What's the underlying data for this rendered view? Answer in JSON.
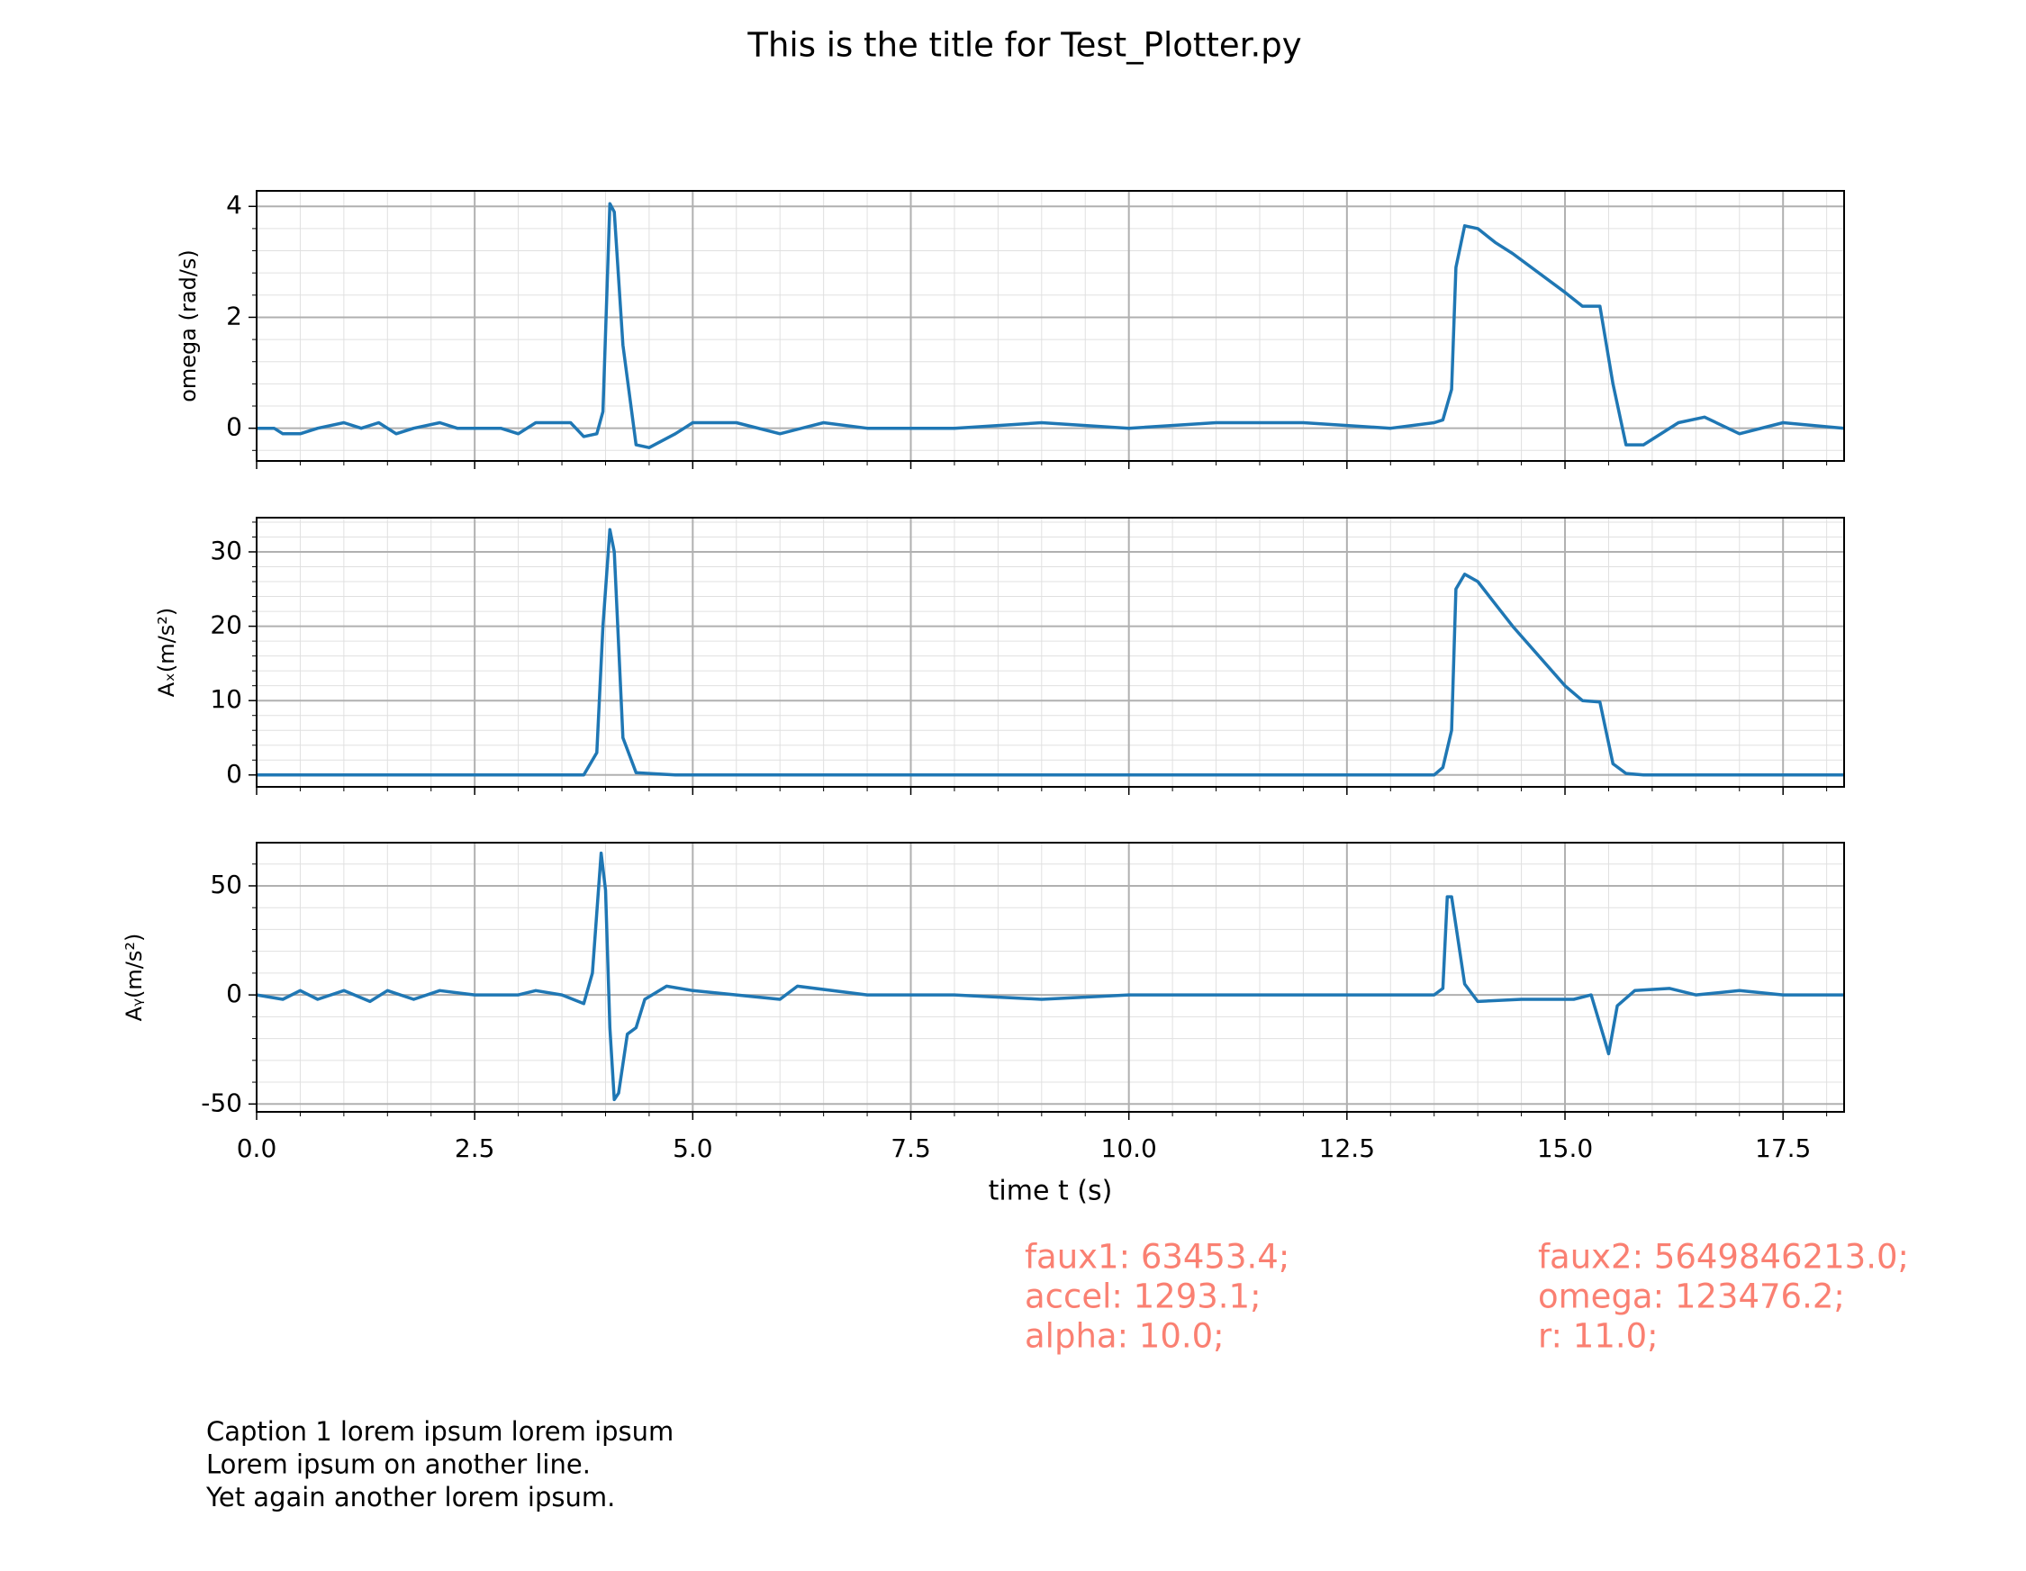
{
  "title": "This is the title for Test_Plotter.py",
  "annotations": [
    [
      "faux1: 63453.4;",
      "accel: 1293.1;",
      "alpha: 10.0;"
    ],
    [
      "faux2: 5649846213.0;",
      "omega: 123476.2;",
      "r: 11.0;"
    ]
  ],
  "annotation_color": "#fa8072",
  "caption": [
    "Caption 1 lorem ipsum lorem ipsum",
    "Lorem ipsum on another line.",
    "Yet again another lorem ipsum."
  ],
  "chart_data": [
    {
      "type": "line",
      "ylabel": "omega (rad/s)",
      "x": [
        0,
        0.2,
        0.3,
        0.5,
        0.7,
        1.0,
        1.2,
        1.4,
        1.6,
        1.8,
        2.1,
        2.3,
        2.8,
        3.0,
        3.2,
        3.6,
        3.75,
        3.9,
        3.97,
        4.05,
        4.1,
        4.2,
        4.35,
        4.5,
        4.8,
        5.0,
        5.5,
        6.0,
        6.5,
        7.0,
        7.5,
        8.0,
        9.0,
        10.0,
        11.0,
        12.0,
        13.0,
        13.5,
        13.6,
        13.7,
        13.75,
        13.85,
        14.0,
        14.2,
        14.4,
        15.0,
        15.2,
        15.4,
        15.55,
        15.7,
        15.9,
        16.3,
        16.6,
        17.0,
        17.5,
        18.2
      ],
      "series": [
        {
          "color": "#1f77b4",
          "values": [
            0,
            0,
            -0.1,
            -0.1,
            0,
            0.1,
            0,
            0.1,
            -0.1,
            0,
            0.1,
            0,
            0,
            -0.1,
            0.1,
            0.1,
            -0.15,
            -0.1,
            0.3,
            4.05,
            3.9,
            1.5,
            -0.3,
            -0.35,
            -0.1,
            0.1,
            0.1,
            -0.1,
            0.1,
            0,
            0,
            0,
            0.1,
            0,
            0.1,
            0.1,
            0,
            0.1,
            0.15,
            0.7,
            2.9,
            3.65,
            3.6,
            3.35,
            3.15,
            2.45,
            2.2,
            2.2,
            0.8,
            -0.3,
            -0.3,
            0.1,
            0.2,
            -0.1,
            0.1,
            0
          ]
        }
      ],
      "xlim": [
        0,
        18.2
      ],
      "ylim": [
        -0.59,
        4.28
      ],
      "yticks": [
        0,
        2,
        4
      ],
      "grid": true
    },
    {
      "type": "line",
      "ylabel": "Aₓ(m/s²)",
      "x": [
        0,
        0.2,
        0.3,
        0.5,
        0.7,
        1.0,
        1.2,
        1.4,
        1.6,
        1.8,
        2.1,
        2.3,
        2.8,
        3.0,
        3.2,
        3.6,
        3.75,
        3.9,
        3.97,
        4.05,
        4.1,
        4.2,
        4.35,
        4.5,
        4.8,
        5.0,
        5.5,
        6.0,
        6.5,
        7.0,
        7.5,
        8.0,
        9.0,
        10.0,
        11.0,
        12.0,
        13.0,
        13.5,
        13.6,
        13.7,
        13.75,
        13.85,
        14.0,
        14.2,
        14.4,
        15.0,
        15.2,
        15.4,
        15.55,
        15.7,
        15.9,
        16.3,
        16.6,
        17.0,
        17.5,
        18.2
      ],
      "series": [
        {
          "color": "#1f77b4",
          "values": [
            0,
            0,
            0,
            0,
            0,
            0,
            0,
            0,
            0,
            0,
            0,
            0,
            0,
            0,
            0,
            0,
            0,
            3,
            20,
            33,
            30,
            5,
            0.3,
            0.2,
            0,
            0,
            0,
            0,
            0,
            0,
            0,
            0,
            0,
            0,
            0,
            0,
            0,
            0,
            1,
            6,
            25,
            27,
            26,
            23,
            20,
            12,
            10,
            9.8,
            1.5,
            0.2,
            0,
            0,
            0,
            0,
            0,
            0
          ]
        }
      ],
      "xlim": [
        0,
        18.2
      ],
      "ylim": [
        -1.6,
        34.6
      ],
      "yticks": [
        0,
        10,
        20,
        30
      ],
      "grid": true
    },
    {
      "type": "line",
      "ylabel": "Aᵧ(m/s²)",
      "xlabel": "time t (s)",
      "x": [
        0,
        0.3,
        0.5,
        0.7,
        1.0,
        1.3,
        1.5,
        1.8,
        2.1,
        2.5,
        3.0,
        3.2,
        3.5,
        3.75,
        3.85,
        3.95,
        4.0,
        4.05,
        4.1,
        4.15,
        4.25,
        4.35,
        4.45,
        4.7,
        5.0,
        6.0,
        6.2,
        7.0,
        8.0,
        9.0,
        10.0,
        11.0,
        12.0,
        13.0,
        13.5,
        13.6,
        13.65,
        13.7,
        13.85,
        14.0,
        14.5,
        15.0,
        15.1,
        15.3,
        15.45,
        15.5,
        15.6,
        15.8,
        16.2,
        16.5,
        17.0,
        17.5,
        18.2
      ],
      "series": [
        {
          "color": "#1f77b4",
          "values": [
            0,
            -2,
            2,
            -2,
            2,
            -3,
            2,
            -2,
            2,
            0,
            0,
            2,
            0,
            -4,
            10,
            65,
            48,
            -15,
            -48,
            -45,
            -18,
            -15,
            -2,
            4,
            2,
            -2,
            4,
            0,
            0,
            -2,
            0,
            0,
            0,
            0,
            0,
            3,
            45,
            45,
            5,
            -3,
            -2,
            -2,
            -2,
            0,
            -20,
            -27,
            -5,
            2,
            3,
            0,
            2,
            0,
            0
          ]
        }
      ],
      "xlim": [
        0,
        18.2
      ],
      "ylim": [
        -53.6,
        69.8
      ],
      "yticks": [
        -50,
        0,
        50
      ],
      "xticks": [
        {
          "value": 0,
          "label": "0.0"
        },
        2.5,
        {
          "value": 5,
          "label": "5.0"
        },
        7.5,
        {
          "value": 10,
          "label": "10.0"
        },
        12.5,
        {
          "value": 15,
          "label": "15.0"
        },
        17.5
      ],
      "grid": true
    }
  ]
}
